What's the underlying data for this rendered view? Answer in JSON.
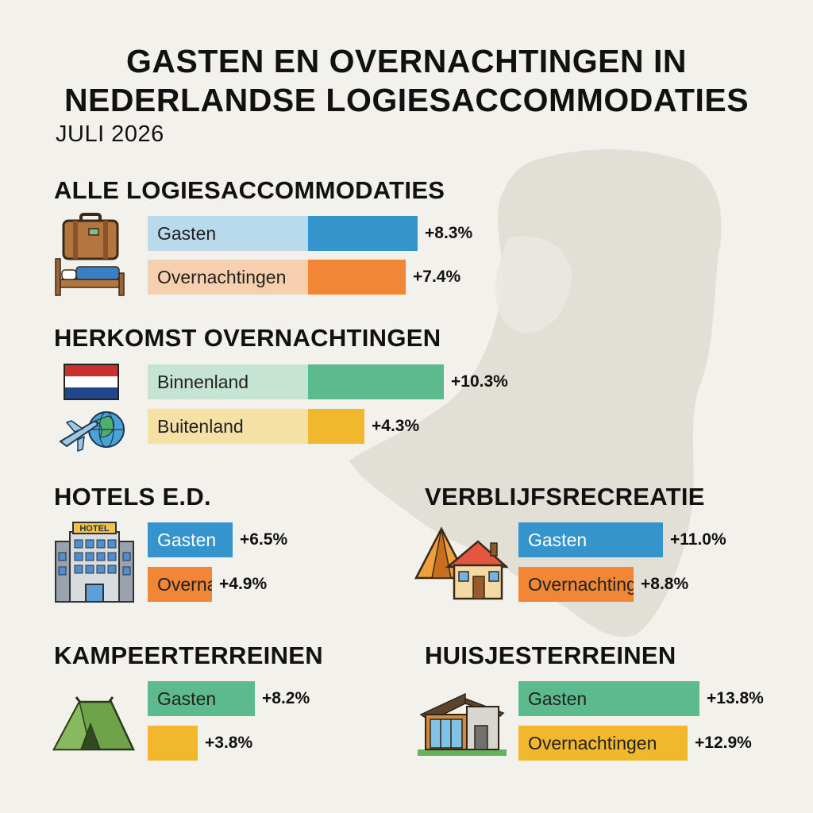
{
  "title_line1": "GASTEN EN OVERNACHTINGEN IN",
  "title_line2": "NEDERLANDSE LOGIESACCOMMODATIES",
  "subtitle": "JULI 2026",
  "colors": {
    "blue": "#3594cc",
    "blue_light": "#b9d9ec",
    "orange": "#f08636",
    "orange_light": "#f6cfae",
    "green": "#5dba8f",
    "green_light": "#c5e4d3",
    "yellow": "#f1b82d",
    "yellow_light": "#f5e0a6",
    "background": "#f2f1ec"
  },
  "icons": {
    "alle": [
      "suitcase-icon",
      "bed-icon"
    ],
    "herkomst": [
      "dutch-flag-icon",
      "airplane-globe-icon"
    ],
    "hotels": [
      "hotel-building-icon"
    ],
    "verblijfsrecreatie": [
      "tent-and-house-icon"
    ],
    "kampeer": [
      "camping-tent-icon"
    ],
    "huisjes": [
      "holiday-cottage-icon"
    ]
  },
  "chart_data": [
    {
      "type": "bar",
      "title": "ALLE LOGIESACCOMMODATIES",
      "series": [
        {
          "name": "Gasten",
          "value": 8.3,
          "label": "+8.3%",
          "color": "blue"
        },
        {
          "name": "Overnachtingen",
          "value": 7.4,
          "label": "+7.4%",
          "color": "orange"
        }
      ]
    },
    {
      "type": "bar",
      "title": "HERKOMST OVERNACHTINGEN",
      "series": [
        {
          "name": "Binnenland",
          "value": 10.3,
          "label": "+10.3%",
          "color": "green"
        },
        {
          "name": "Buitenland",
          "value": 4.3,
          "label": "+4.3%",
          "color": "yellow"
        }
      ]
    },
    {
      "type": "bar",
      "title": "HOTELS E.D.",
      "series": [
        {
          "name": "Gasten",
          "value": 6.5,
          "label": "+6.5%",
          "color": "blue"
        },
        {
          "name": "Overnachtingen",
          "value": 4.9,
          "label": "+4.9%",
          "color": "orange"
        }
      ]
    },
    {
      "type": "bar",
      "title": "VERBLIJFSRECREATIE",
      "series": [
        {
          "name": "Gasten",
          "value": 11.0,
          "label": "+11.0%",
          "color": "blue"
        },
        {
          "name": "Overnachtingen",
          "value": 8.8,
          "label": "+8.8%",
          "color": "orange"
        }
      ]
    },
    {
      "type": "bar",
      "title": "KAMPEERTERREINEN",
      "series": [
        {
          "name": "Gasten",
          "value": 8.2,
          "label": "+8.2%",
          "color": "green"
        },
        {
          "name": "",
          "value": 3.8,
          "label": "+3.8%",
          "color": "yellow"
        }
      ]
    },
    {
      "type": "bar",
      "title": "HUISJESTERREINEN",
      "series": [
        {
          "name": "Gasten",
          "value": 13.8,
          "label": "+13.8%",
          "color": "green"
        },
        {
          "name": "Overnachtingen",
          "value": 12.9,
          "label": "+12.9%",
          "color": "yellow"
        }
      ]
    }
  ]
}
